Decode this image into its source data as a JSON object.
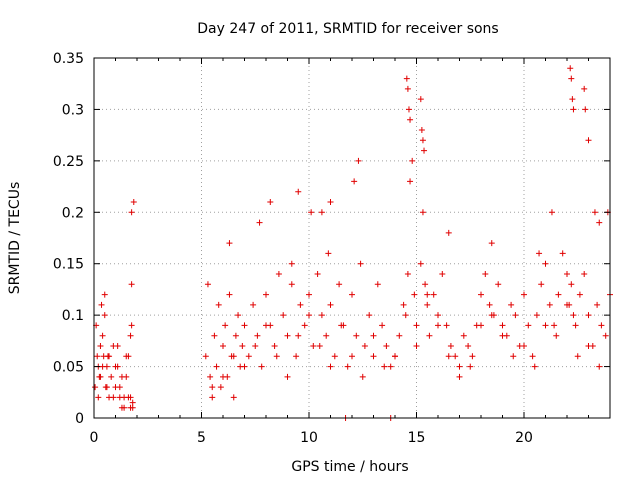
{
  "chart_data": {
    "type": "scatter",
    "title": "Day 247 of 2011, SRMTID for receiver sons",
    "xlabel": "GPS time / hours",
    "ylabel": "SRMTID / TECUs",
    "xlim": [
      0,
      24
    ],
    "ylim": [
      0,
      0.35
    ],
    "xticks": [
      0,
      5,
      10,
      15,
      20
    ],
    "xtick_labels": [
      "0",
      "5",
      "10",
      "15",
      "20"
    ],
    "yticks": [
      0,
      0.05,
      0.1,
      0.15,
      0.2,
      0.25,
      0.3,
      0.35
    ],
    "ytick_labels": [
      "0",
      "0.05",
      "0.1",
      "0.15",
      "0.2",
      "0.25",
      "0.3",
      "0.35"
    ],
    "grid": true,
    "marker": "+",
    "color": "#e00000",
    "series": [
      {
        "name": "SRMTID",
        "x": [
          0.05,
          0.1,
          0.15,
          0.2,
          0.25,
          0.3,
          0.35,
          0.4,
          0.45,
          0.5,
          0.55,
          0.6,
          0.65,
          0.7,
          0.8,
          0.9,
          1.0,
          1.1,
          1.2,
          1.3,
          1.4,
          1.5,
          1.6,
          1.7,
          1.75,
          1.8,
          0.2,
          0.3,
          0.4,
          0.5,
          0.6,
          0.7,
          0.9,
          1.0,
          1.1,
          1.2,
          1.3,
          1.4,
          1.5,
          1.6,
          1.7,
          1.8,
          1.85,
          1.75,
          1.75,
          1.7,
          5.2,
          5.3,
          5.4,
          5.5,
          5.6,
          5.7,
          5.8,
          5.9,
          6.0,
          6.1,
          6.2,
          6.3,
          6.4,
          6.5,
          6.6,
          6.7,
          6.8,
          6.9,
          7.0,
          7.2,
          7.4,
          7.6,
          7.8,
          8.0,
          8.2,
          8.4,
          8.6,
          8.8,
          9.0,
          9.2,
          9.4,
          9.6,
          9.8,
          10.0,
          10.2,
          10.4,
          10.6,
          10.8,
          11.0,
          11.2,
          11.4,
          11.6,
          11.8,
          12.0,
          12.2,
          12.4,
          12.6,
          12.8,
          13.0,
          13.2,
          13.4,
          13.6,
          13.8,
          14.0,
          14.2,
          14.4,
          14.6,
          14.7,
          14.8,
          14.9,
          15.0,
          15.2,
          15.3,
          15.4,
          15.5,
          15.6,
          15.8,
          16.0,
          16.2,
          16.4,
          16.6,
          16.8,
          17.0,
          17.2,
          17.4,
          17.6,
          17.8,
          18.0,
          18.2,
          18.4,
          18.6,
          18.8,
          19.0,
          19.2,
          19.4,
          19.6,
          19.8,
          20.0,
          20.2,
          20.4,
          20.6,
          20.8,
          21.0,
          21.2,
          21.4,
          21.6,
          21.8,
          22.0,
          22.1,
          22.2,
          22.3,
          22.4,
          22.6,
          22.8,
          23.0,
          23.2,
          23.4,
          23.6,
          23.8,
          24.0,
          5.5,
          6.0,
          6.5,
          7.0,
          7.5,
          8.0,
          8.5,
          9.0,
          9.5,
          10.0,
          10.5,
          11.0,
          11.5,
          12.0,
          12.5,
          13.0,
          13.5,
          14.0,
          14.5,
          15.0,
          15.5,
          16.0,
          16.5,
          17.0,
          17.5,
          18.0,
          18.5,
          19.0,
          19.5,
          20.0,
          20.5,
          21.0,
          21.5,
          22.0,
          22.5,
          23.0,
          23.5,
          8.2,
          9.5,
          10.1,
          10.6,
          11.0,
          12.1,
          12.3,
          14.55,
          14.6,
          14.65,
          14.7,
          15.2,
          15.25,
          15.3,
          15.35,
          22.15,
          22.2,
          22.25,
          22.3,
          22.8,
          22.85,
          23.0,
          23.3,
          23.5,
          6.3,
          7.7,
          9.2,
          10.9,
          11.7,
          13.8,
          16.5,
          18.5,
          20.7,
          21.3,
          23.9
        ],
        "y": [
          0.03,
          0.09,
          0.06,
          0.05,
          0.04,
          0.07,
          0.11,
          0.05,
          0.06,
          0.12,
          0.03,
          0.05,
          0.06,
          0.02,
          0.04,
          0.07,
          0.03,
          0.05,
          0.02,
          0.04,
          0.01,
          0.06,
          0.02,
          0.01,
          0.09,
          0.01,
          0.02,
          0.04,
          0.08,
          0.1,
          0.03,
          0.06,
          0.02,
          0.05,
          0.07,
          0.03,
          0.01,
          0.02,
          0.04,
          0.06,
          0.02,
          0.015,
          0.21,
          0.2,
          0.13,
          0.08,
          0.06,
          0.13,
          0.04,
          0.02,
          0.08,
          0.05,
          0.11,
          0.03,
          0.07,
          0.09,
          0.04,
          0.12,
          0.06,
          0.02,
          0.08,
          0.1,
          0.05,
          0.07,
          0.09,
          0.06,
          0.11,
          0.08,
          0.05,
          0.12,
          0.09,
          0.07,
          0.14,
          0.1,
          0.08,
          0.13,
          0.06,
          0.11,
          0.09,
          0.12,
          0.07,
          0.14,
          0.1,
          0.08,
          0.11,
          0.06,
          0.13,
          0.09,
          0.05,
          0.12,
          0.08,
          0.15,
          0.07,
          0.1,
          0.06,
          0.13,
          0.09,
          0.07,
          0.05,
          0.06,
          0.08,
          0.11,
          0.14,
          0.23,
          0.25,
          0.12,
          0.09,
          0.15,
          0.2,
          0.13,
          0.11,
          0.08,
          0.12,
          0.1,
          0.14,
          0.09,
          0.07,
          0.06,
          0.05,
          0.08,
          0.07,
          0.06,
          0.09,
          0.12,
          0.14,
          0.11,
          0.1,
          0.13,
          0.09,
          0.08,
          0.11,
          0.1,
          0.07,
          0.12,
          0.09,
          0.06,
          0.1,
          0.13,
          0.15,
          0.11,
          0.09,
          0.12,
          0.16,
          0.14,
          0.11,
          0.13,
          0.1,
          0.09,
          0.12,
          0.14,
          0.1,
          0.07,
          0.11,
          0.09,
          0.08,
          0.12,
          0.03,
          0.04,
          0.06,
          0.05,
          0.07,
          0.09,
          0.06,
          0.04,
          0.08,
          0.1,
          0.07,
          0.05,
          0.09,
          0.06,
          0.04,
          0.08,
          0.05,
          0.06,
          0.1,
          0.07,
          0.12,
          0.09,
          0.06,
          0.04,
          0.05,
          0.09,
          0.1,
          0.08,
          0.06,
          0.07,
          0.05,
          0.09,
          0.08,
          0.11,
          0.06,
          0.07,
          0.05,
          0.21,
          0.22,
          0.2,
          0.2,
          0.21,
          0.23,
          0.25,
          0.33,
          0.32,
          0.3,
          0.29,
          0.31,
          0.28,
          0.27,
          0.26,
          0.34,
          0.33,
          0.31,
          0.3,
          0.32,
          0.3,
          0.27,
          0.2,
          0.19,
          0.17,
          0.19,
          0.15,
          0.16,
          0.0,
          0.0,
          0.18,
          0.17,
          0.16,
          0.2,
          0.2
        ]
      }
    ]
  }
}
